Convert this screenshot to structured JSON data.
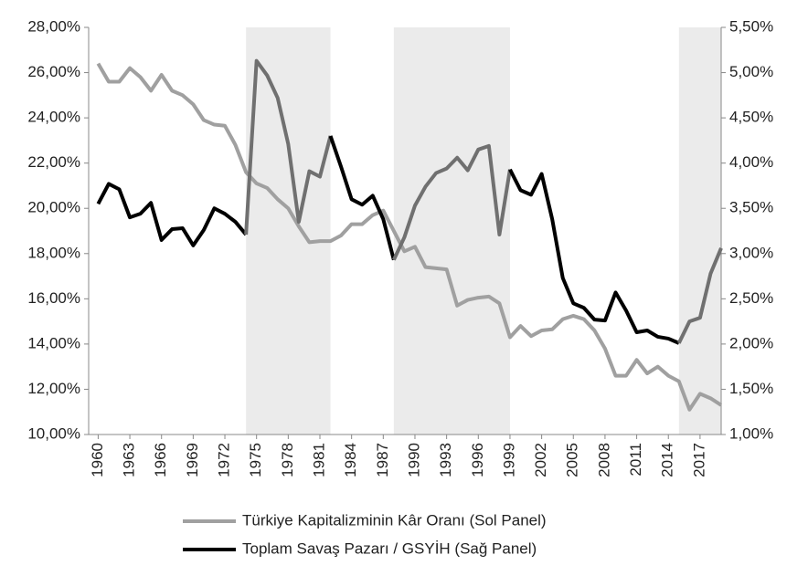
{
  "chart_data": {
    "type": "line",
    "x": [
      1960,
      1961,
      1962,
      1963,
      1964,
      1965,
      1966,
      1967,
      1968,
      1969,
      1970,
      1971,
      1972,
      1973,
      1974,
      1975,
      1976,
      1977,
      1978,
      1979,
      1980,
      1981,
      1982,
      1983,
      1984,
      1985,
      1986,
      1987,
      1988,
      1989,
      1990,
      1991,
      1992,
      1993,
      1994,
      1995,
      1996,
      1997,
      1998,
      1999,
      2000,
      2001,
      2002,
      2003,
      2004,
      2005,
      2006,
      2007,
      2008,
      2009,
      2010,
      2011,
      2012,
      2013,
      2014,
      2015,
      2016,
      2017,
      2018,
      2019
    ],
    "xlim": [
      1959.1,
      2019
    ],
    "xticks": [
      1960,
      1963,
      1966,
      1969,
      1972,
      1975,
      1978,
      1981,
      1984,
      1987,
      1990,
      1993,
      1996,
      1999,
      2002,
      2005,
      2008,
      2011,
      2014,
      2017
    ],
    "ylim": [
      10,
      28
    ],
    "yticks": [
      {
        "value": 10,
        "label": "10,00%"
      },
      {
        "value": 12,
        "label": "12,00%"
      },
      {
        "value": 14,
        "label": "14,00%"
      },
      {
        "value": 16,
        "label": "16,00%"
      },
      {
        "value": 18,
        "label": "18,00%"
      },
      {
        "value": 20,
        "label": "20,00%"
      },
      {
        "value": 22,
        "label": "22,00%"
      },
      {
        "value": 24,
        "label": "24,00%"
      },
      {
        "value": 26,
        "label": "26,00%"
      },
      {
        "value": 28,
        "label": "28,00%"
      }
    ],
    "y2lim": [
      1,
      5.5
    ],
    "y2ticks": [
      {
        "value": 1,
        "label": "1,00%"
      },
      {
        "value": 1.5,
        "label": "1,50%"
      },
      {
        "value": 2,
        "label": "2,00%"
      },
      {
        "value": 2.5,
        "label": "2,50%"
      },
      {
        "value": 3,
        "label": "3,00%"
      },
      {
        "value": 3.5,
        "label": "3,50%"
      },
      {
        "value": 4,
        "label": "4,00%"
      },
      {
        "value": 4.5,
        "label": "4,50%"
      },
      {
        "value": 5,
        "label": "5,00%"
      },
      {
        "value": 5.5,
        "label": "5,50%"
      }
    ],
    "shaded_spans": [
      [
        1974,
        1982
      ],
      [
        1988,
        1999
      ],
      [
        2015,
        2019
      ]
    ],
    "shade_color": "#ebebeb",
    "series": [
      {
        "name": "Türkiye Kapitalizminin Kâr Oranı (Sol Panel)",
        "color": "#a0a0a0",
        "values": [
          26.4,
          25.6,
          25.6,
          26.2,
          25.8,
          25.2,
          25.9,
          25.2,
          25.0,
          24.6,
          23.9,
          23.7,
          23.65,
          22.8,
          21.6,
          21.1,
          20.9,
          20.4,
          20.0,
          19.2,
          18.5,
          18.55,
          18.55,
          18.8,
          19.3,
          19.3,
          19.7,
          19.9,
          19.0,
          18.1,
          18.3,
          17.4,
          17.35,
          17.3,
          15.7,
          15.95,
          16.05,
          16.1,
          15.8,
          14.3,
          14.8,
          14.35,
          14.6,
          14.65,
          15.1,
          15.25,
          15.1,
          14.6,
          13.8,
          12.6,
          12.6,
          13.3,
          12.7,
          13.0,
          12.6,
          12.35,
          11.1,
          11.8,
          11.6,
          11.3
        ]
      },
      {
        "name": "Toplam Savaş Pazarı / GSYİH (Sağ Panel)",
        "color": "#000000",
        "shaded_color": "#707070",
        "axis": "y2",
        "values": [
          3.55,
          3.77,
          3.71,
          3.4,
          3.44,
          3.56,
          3.15,
          3.27,
          3.28,
          3.09,
          3.26,
          3.5,
          3.44,
          3.35,
          3.21,
          5.13,
          4.97,
          4.72,
          4.21,
          3.35,
          3.91,
          3.85,
          4.3,
          3.96,
          3.6,
          3.54,
          3.64,
          3.38,
          2.93,
          3.18,
          3.53,
          3.74,
          3.89,
          3.94,
          4.06,
          3.92,
          4.15,
          4.19,
          3.21,
          3.93,
          3.7,
          3.65,
          3.88,
          3.38,
          2.73,
          2.45,
          2.4,
          2.27,
          2.26,
          2.57,
          2.37,
          2.13,
          2.15,
          2.08,
          2.06,
          2.01,
          2.25,
          2.29,
          2.78,
          3.06
        ]
      }
    ]
  }
}
